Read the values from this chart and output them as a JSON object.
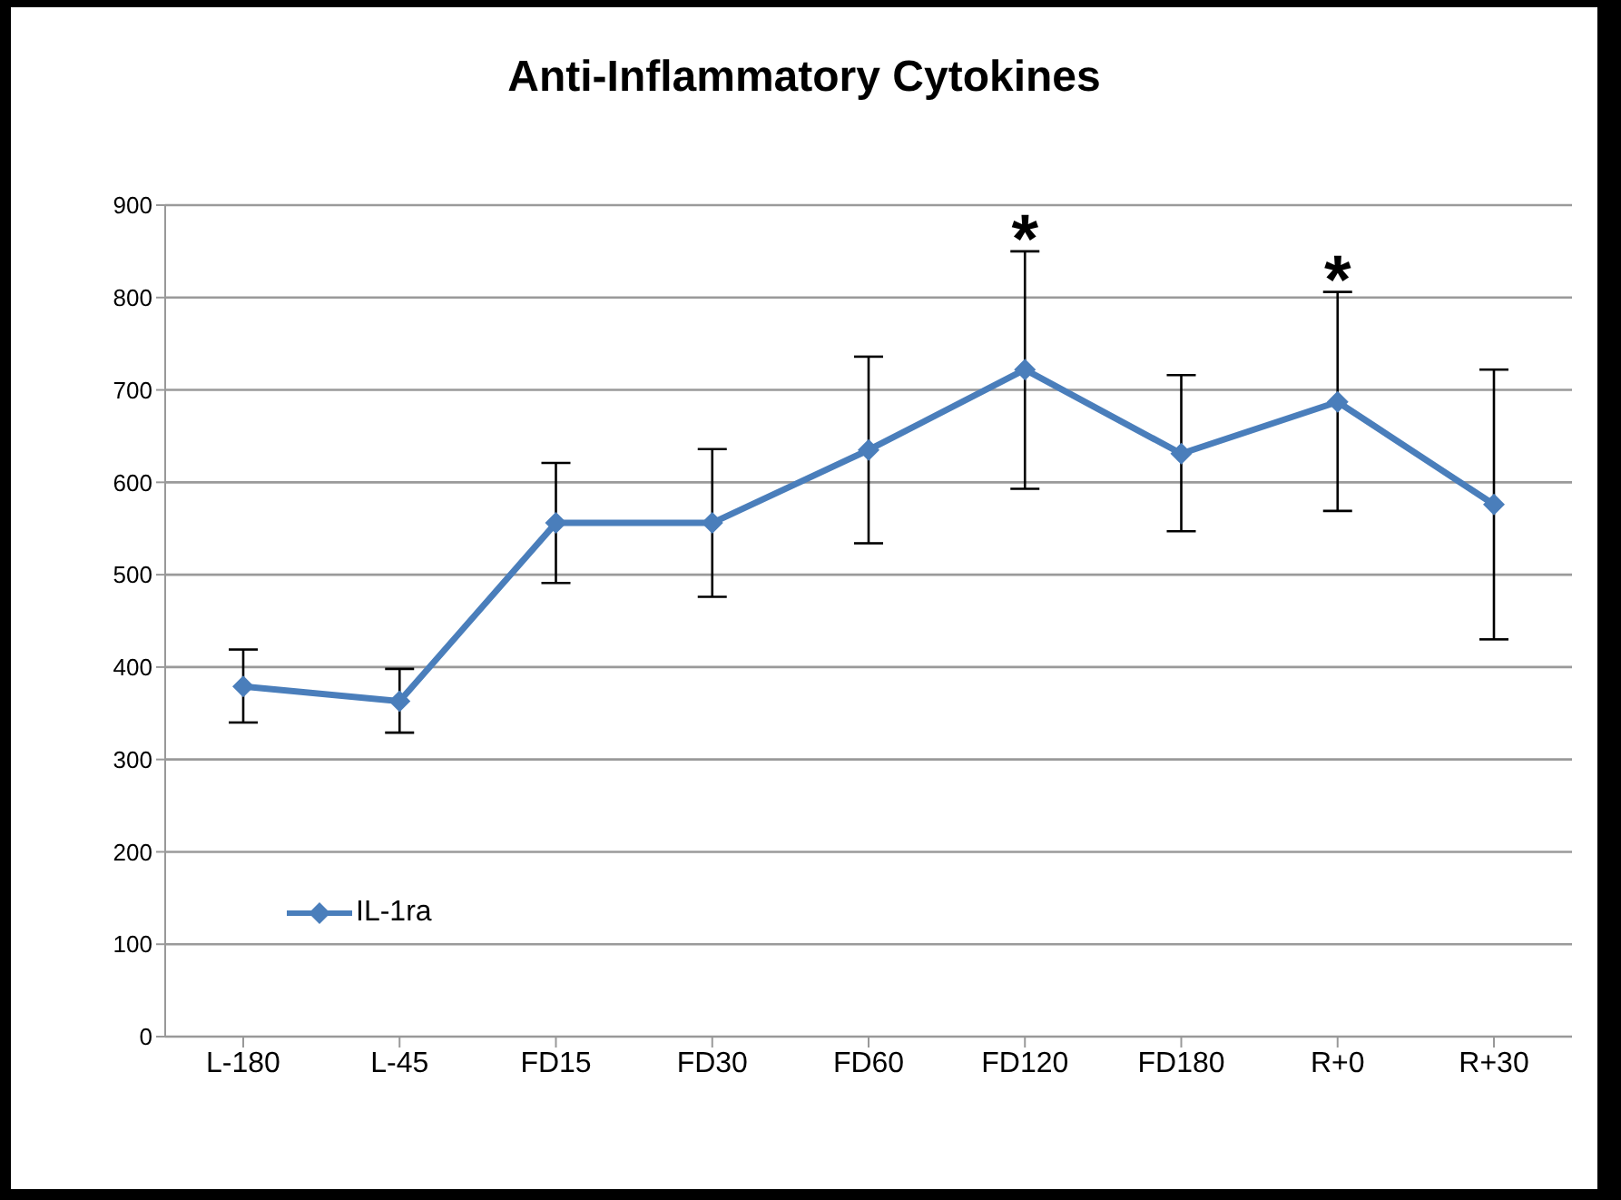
{
  "chart_data": {
    "type": "line",
    "title": "Anti-Inflammatory Cytokines",
    "categories": [
      "L-180",
      "L-45",
      "FD15",
      "FD30",
      "FD60",
      "FD120",
      "FD180",
      "R+0",
      "R+30"
    ],
    "series": [
      {
        "name": "IL-1ra",
        "color": "#4a7ebb",
        "values": [
          379,
          363,
          556,
          556,
          635,
          722,
          631,
          687,
          576
        ],
        "errors": [
          [
            340,
            419
          ],
          [
            329,
            398
          ],
          [
            491,
            621
          ],
          [
            476,
            636
          ],
          [
            534,
            736
          ],
          [
            593,
            850
          ],
          [
            547,
            716
          ],
          [
            569,
            806
          ],
          [
            430,
            722
          ]
        ]
      }
    ],
    "ylim": [
      0,
      900
    ],
    "yticks": [
      0,
      100,
      200,
      300,
      400,
      500,
      600,
      700,
      800,
      900
    ],
    "grid": "y",
    "legend": "bottom left",
    "marker": "diamond",
    "line_style": "solid",
    "annotations": [
      {
        "text": "*",
        "x": "FD120",
        "y": 850
      },
      {
        "text": "*",
        "x": "R+0",
        "y": 806
      }
    ]
  }
}
